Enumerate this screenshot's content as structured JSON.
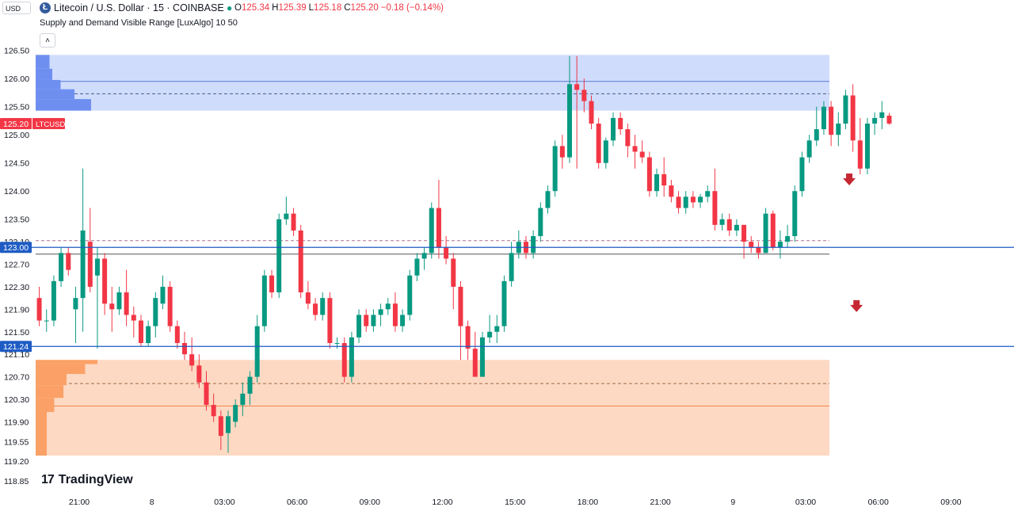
{
  "header": {
    "currency_selector": "USD",
    "logo_glyph": "Ł",
    "title": "Litecoin / U.S. Dollar · 15 · COINBASE",
    "status_dot": "●",
    "ohlc": [
      {
        "label": "O",
        "value": "125.34"
      },
      {
        "label": "H",
        "value": "125.39"
      },
      {
        "label": "L",
        "value": "125.18"
      },
      {
        "label": "C",
        "value": "125.20"
      },
      {
        "label": "",
        "value": "−0.18 (−0.14%)"
      }
    ],
    "indicator": "Supply and Demand Visible Range [LuxAlgo] 10 50",
    "collapse_glyph": "˄"
  },
  "branding": {
    "mark": "17",
    "name": "TradingView"
  },
  "colors": {
    "up": "#089981",
    "down": "#f23645",
    "supply_zone": "#c7d6fb",
    "supply_line": "#5b7ad6",
    "supply_profile": "#6f8ff0",
    "demand_zone": "#fdd5bd",
    "demand_line": "#f0844d",
    "demand_profile": "#fba167",
    "horizontal_line": "#1e5cc4",
    "arrow": "#c62833"
  },
  "chart_data": {
    "type": "candlestick",
    "symbol": "LTCUSD",
    "ylim": [
      118.85,
      126.65
    ],
    "y_ticks": [
      "126.50",
      "126.00",
      "125.50",
      "125.00",
      "124.50",
      "124.00",
      "123.50",
      "123.10",
      "122.70",
      "122.30",
      "121.90",
      "121.50",
      "121.10",
      "120.70",
      "120.30",
      "119.90",
      "119.55",
      "119.20",
      "118.85"
    ],
    "x_ticks": [
      {
        "label": "21:00",
        "bar": 6
      },
      {
        "label": "8",
        "bar": 16
      },
      {
        "label": "03:00",
        "bar": 26
      },
      {
        "label": "06:00",
        "bar": 36
      },
      {
        "label": "09:00",
        "bar": 46
      },
      {
        "label": "12:00",
        "bar": 56
      },
      {
        "label": "15:00",
        "bar": 66
      },
      {
        "label": "18:00",
        "bar": 76
      },
      {
        "label": "21:00",
        "bar": 86
      },
      {
        "label": "9",
        "bar": 96
      },
      {
        "label": "03:00",
        "bar": 106
      },
      {
        "label": "06:00",
        "bar": 116
      },
      {
        "label": "09:00",
        "bar": 126
      }
    ],
    "price_labels": [
      {
        "text": "125.20",
        "tag": "LTCUSD",
        "value": 125.2,
        "color": "#f23645"
      },
      {
        "text": "123.00",
        "value": 123.0,
        "color": "#1e5cc4"
      },
      {
        "text": "121.24",
        "value": 121.24,
        "color": "#1e5cc4"
      }
    ],
    "horizontal_lines": [
      123.0,
      121.24
    ],
    "supply_zone": {
      "top": 126.42,
      "bottom": 125.43,
      "avg_line": 125.95,
      "dashed_line": 125.73
    },
    "demand_zone": {
      "top": 121.0,
      "bottom": 119.3,
      "avg_line": 120.18,
      "dashed_line": 120.58
    },
    "extra_lines": {
      "dashed": 123.12,
      "solid": 122.88
    },
    "supply_profile": [
      {
        "level": 126.3,
        "strength": 0.25
      },
      {
        "level": 126.05,
        "strength": 0.3
      },
      {
        "level": 125.9,
        "strength": 0.45
      },
      {
        "level": 125.72,
        "strength": 0.7
      },
      {
        "level": 125.55,
        "strength": 1.0
      }
    ],
    "demand_profile": [
      {
        "level": 121.0,
        "strength": 1.0
      },
      {
        "level": 120.85,
        "strength": 0.8
      },
      {
        "level": 120.65,
        "strength": 0.5
      },
      {
        "level": 120.45,
        "strength": 0.45
      },
      {
        "level": 120.2,
        "strength": 0.3
      },
      {
        "level": 119.95,
        "strength": 0.18
      }
    ],
    "signals": [
      {
        "type": "down-arrow",
        "bar": 112,
        "price": 124.2
      },
      {
        "type": "down-arrow",
        "bar": 113,
        "price": 121.95
      }
    ],
    "candles": [
      {
        "o": 122.1,
        "h": 122.3,
        "l": 121.6,
        "c": 121.7
      },
      {
        "o": 121.7,
        "h": 121.9,
        "l": 121.5,
        "c": 121.7
      },
      {
        "o": 121.7,
        "h": 122.5,
        "l": 121.6,
        "c": 122.4
      },
      {
        "o": 122.4,
        "h": 123.0,
        "l": 122.3,
        "c": 122.9
      },
      {
        "o": 122.9,
        "h": 123.0,
        "l": 122.5,
        "c": 122.6
      },
      {
        "o": 121.9,
        "h": 122.3,
        "l": 121.3,
        "c": 122.1
      },
      {
        "o": 122.1,
        "h": 124.4,
        "l": 121.5,
        "c": 123.3
      },
      {
        "o": 123.1,
        "h": 123.7,
        "l": 122.2,
        "c": 122.3
      },
      {
        "o": 122.5,
        "h": 123.0,
        "l": 121.2,
        "c": 122.8
      },
      {
        "o": 122.8,
        "h": 122.9,
        "l": 121.8,
        "c": 122.0
      },
      {
        "o": 122.0,
        "h": 122.3,
        "l": 121.5,
        "c": 121.9
      },
      {
        "o": 121.9,
        "h": 122.3,
        "l": 121.8,
        "c": 122.2
      },
      {
        "o": 122.2,
        "h": 122.6,
        "l": 121.6,
        "c": 121.8
      },
      {
        "o": 121.8,
        "h": 121.95,
        "l": 121.4,
        "c": 121.7
      },
      {
        "o": 121.7,
        "h": 121.8,
        "l": 121.25,
        "c": 121.3
      },
      {
        "o": 121.3,
        "h": 121.7,
        "l": 121.25,
        "c": 121.6
      },
      {
        "o": 121.6,
        "h": 122.2,
        "l": 121.4,
        "c": 122.1
      },
      {
        "o": 122.0,
        "h": 122.5,
        "l": 121.9,
        "c": 122.3
      },
      {
        "o": 122.3,
        "h": 122.4,
        "l": 121.5,
        "c": 121.6
      },
      {
        "o": 121.6,
        "h": 121.7,
        "l": 121.2,
        "c": 121.3
      },
      {
        "o": 121.3,
        "h": 121.5,
        "l": 121.0,
        "c": 121.1
      },
      {
        "o": 121.1,
        "h": 121.4,
        "l": 120.8,
        "c": 120.9
      },
      {
        "o": 120.9,
        "h": 121.1,
        "l": 120.5,
        "c": 120.6
      },
      {
        "o": 120.6,
        "h": 120.8,
        "l": 120.1,
        "c": 120.2
      },
      {
        "o": 120.2,
        "h": 120.4,
        "l": 119.9,
        "c": 120.0
      },
      {
        "o": 120.0,
        "h": 120.1,
        "l": 119.4,
        "c": 119.65
      },
      {
        "o": 119.7,
        "h": 120.1,
        "l": 119.35,
        "c": 120.0
      },
      {
        "o": 119.9,
        "h": 120.3,
        "l": 119.8,
        "c": 120.2
      },
      {
        "o": 120.2,
        "h": 120.6,
        "l": 120.0,
        "c": 120.4
      },
      {
        "o": 120.4,
        "h": 120.8,
        "l": 120.2,
        "c": 120.7
      },
      {
        "o": 120.7,
        "h": 121.8,
        "l": 120.6,
        "c": 121.6
      },
      {
        "o": 121.6,
        "h": 122.6,
        "l": 121.5,
        "c": 122.5
      },
      {
        "o": 122.5,
        "h": 122.6,
        "l": 122.1,
        "c": 122.2
      },
      {
        "o": 122.2,
        "h": 123.6,
        "l": 122.1,
        "c": 123.5
      },
      {
        "o": 123.5,
        "h": 123.9,
        "l": 123.4,
        "c": 123.6
      },
      {
        "o": 123.6,
        "h": 123.7,
        "l": 123.2,
        "c": 123.3
      },
      {
        "o": 123.3,
        "h": 123.4,
        "l": 122.1,
        "c": 122.2
      },
      {
        "o": 122.2,
        "h": 122.4,
        "l": 121.9,
        "c": 122.0
      },
      {
        "o": 122.0,
        "h": 122.1,
        "l": 121.7,
        "c": 121.8
      },
      {
        "o": 121.8,
        "h": 122.2,
        "l": 121.7,
        "c": 122.1
      },
      {
        "o": 122.1,
        "h": 122.2,
        "l": 121.2,
        "c": 121.3
      },
      {
        "o": 121.3,
        "h": 121.4,
        "l": 121.2,
        "c": 121.3
      },
      {
        "o": 121.3,
        "h": 121.4,
        "l": 120.6,
        "c": 120.7
      },
      {
        "o": 120.7,
        "h": 121.5,
        "l": 120.6,
        "c": 121.4
      },
      {
        "o": 121.4,
        "h": 121.9,
        "l": 121.3,
        "c": 121.8
      },
      {
        "o": 121.8,
        "h": 121.9,
        "l": 121.5,
        "c": 121.6
      },
      {
        "o": 121.6,
        "h": 121.9,
        "l": 121.5,
        "c": 121.8
      },
      {
        "o": 121.8,
        "h": 122.0,
        "l": 121.6,
        "c": 121.9
      },
      {
        "o": 121.9,
        "h": 122.1,
        "l": 121.8,
        "c": 122.0
      },
      {
        "o": 122.0,
        "h": 122.2,
        "l": 121.5,
        "c": 121.6
      },
      {
        "o": 121.6,
        "h": 121.9,
        "l": 121.5,
        "c": 121.8
      },
      {
        "o": 121.8,
        "h": 122.6,
        "l": 121.7,
        "c": 122.5
      },
      {
        "o": 122.5,
        "h": 122.9,
        "l": 122.4,
        "c": 122.8
      },
      {
        "o": 122.8,
        "h": 123.0,
        "l": 122.6,
        "c": 122.9
      },
      {
        "o": 122.9,
        "h": 123.8,
        "l": 122.8,
        "c": 123.7
      },
      {
        "o": 123.7,
        "h": 124.2,
        "l": 122.8,
        "c": 123.0
      },
      {
        "o": 123.0,
        "h": 123.2,
        "l": 122.7,
        "c": 122.8
      },
      {
        "o": 122.8,
        "h": 122.9,
        "l": 121.9,
        "c": 122.3
      },
      {
        "o": 122.3,
        "h": 122.4,
        "l": 121.0,
        "c": 121.6
      },
      {
        "o": 121.6,
        "h": 121.7,
        "l": 121.0,
        "c": 121.2
      },
      {
        "o": 121.2,
        "h": 121.5,
        "l": 120.7,
        "c": 120.7
      },
      {
        "o": 120.7,
        "h": 121.5,
        "l": 120.7,
        "c": 121.4
      },
      {
        "o": 121.4,
        "h": 121.8,
        "l": 121.3,
        "c": 121.5
      },
      {
        "o": 121.5,
        "h": 121.8,
        "l": 121.3,
        "c": 121.6
      },
      {
        "o": 121.6,
        "h": 122.5,
        "l": 121.5,
        "c": 122.4
      },
      {
        "o": 122.4,
        "h": 123.1,
        "l": 122.3,
        "c": 122.9
      },
      {
        "o": 122.9,
        "h": 123.3,
        "l": 122.8,
        "c": 123.1
      },
      {
        "o": 123.1,
        "h": 123.2,
        "l": 122.8,
        "c": 122.9
      },
      {
        "o": 122.9,
        "h": 123.3,
        "l": 122.8,
        "c": 123.2
      },
      {
        "o": 123.2,
        "h": 123.8,
        "l": 123.1,
        "c": 123.7
      },
      {
        "o": 123.7,
        "h": 124.1,
        "l": 123.6,
        "c": 124.0
      },
      {
        "o": 124.0,
        "h": 124.9,
        "l": 123.9,
        "c": 124.8
      },
      {
        "o": 124.8,
        "h": 125.0,
        "l": 124.4,
        "c": 124.6
      },
      {
        "o": 124.6,
        "h": 126.4,
        "l": 124.5,
        "c": 125.9
      },
      {
        "o": 125.9,
        "h": 126.4,
        "l": 124.4,
        "c": 125.8
      },
      {
        "o": 125.8,
        "h": 126.0,
        "l": 125.4,
        "c": 125.6
      },
      {
        "o": 125.6,
        "h": 125.7,
        "l": 125.1,
        "c": 125.2
      },
      {
        "o": 125.2,
        "h": 125.3,
        "l": 124.4,
        "c": 124.5
      },
      {
        "o": 124.5,
        "h": 124.95,
        "l": 124.4,
        "c": 124.9
      },
      {
        "o": 124.9,
        "h": 125.4,
        "l": 124.8,
        "c": 125.3
      },
      {
        "o": 125.3,
        "h": 125.4,
        "l": 125.0,
        "c": 125.1
      },
      {
        "o": 125.1,
        "h": 125.2,
        "l": 124.6,
        "c": 124.8
      },
      {
        "o": 124.8,
        "h": 125.0,
        "l": 124.4,
        "c": 124.7
      },
      {
        "o": 124.7,
        "h": 124.9,
        "l": 124.5,
        "c": 124.6
      },
      {
        "o": 124.6,
        "h": 124.7,
        "l": 123.9,
        "c": 124.0
      },
      {
        "o": 124.0,
        "h": 124.4,
        "l": 123.9,
        "c": 124.3
      },
      {
        "o": 124.3,
        "h": 124.6,
        "l": 123.9,
        "c": 124.1
      },
      {
        "o": 124.1,
        "h": 124.2,
        "l": 123.8,
        "c": 123.9
      },
      {
        "o": 123.9,
        "h": 124.0,
        "l": 123.6,
        "c": 123.7
      },
      {
        "o": 123.7,
        "h": 124.0,
        "l": 123.6,
        "c": 123.9
      },
      {
        "o": 123.9,
        "h": 124.0,
        "l": 123.7,
        "c": 123.8
      },
      {
        "o": 123.8,
        "h": 123.95,
        "l": 123.7,
        "c": 123.9
      },
      {
        "o": 123.9,
        "h": 124.1,
        "l": 123.8,
        "c": 124.0
      },
      {
        "o": 124.0,
        "h": 124.4,
        "l": 123.3,
        "c": 123.4
      },
      {
        "o": 123.4,
        "h": 123.6,
        "l": 123.3,
        "c": 123.5
      },
      {
        "o": 123.5,
        "h": 123.6,
        "l": 123.2,
        "c": 123.3
      },
      {
        "o": 123.3,
        "h": 123.5,
        "l": 123.2,
        "c": 123.4
      },
      {
        "o": 123.4,
        "h": 123.4,
        "l": 122.8,
        "c": 123.1
      },
      {
        "o": 123.1,
        "h": 123.2,
        "l": 122.9,
        "c": 123.0
      },
      {
        "o": 123.0,
        "h": 123.1,
        "l": 122.8,
        "c": 122.9
      },
      {
        "o": 122.9,
        "h": 123.7,
        "l": 122.9,
        "c": 123.6
      },
      {
        "o": 123.6,
        "h": 123.65,
        "l": 122.95,
        "c": 123.0
      },
      {
        "o": 123.0,
        "h": 123.3,
        "l": 122.8,
        "c": 123.1
      },
      {
        "o": 123.1,
        "h": 123.4,
        "l": 123.0,
        "c": 123.2
      },
      {
        "o": 123.2,
        "h": 124.1,
        "l": 123.1,
        "c": 124.0
      },
      {
        "o": 124.0,
        "h": 124.7,
        "l": 123.9,
        "c": 124.6
      },
      {
        "o": 124.6,
        "h": 125.0,
        "l": 124.5,
        "c": 124.9
      },
      {
        "o": 124.9,
        "h": 125.5,
        "l": 124.8,
        "c": 125.1
      },
      {
        "o": 125.1,
        "h": 125.6,
        "l": 125.0,
        "c": 125.5
      },
      {
        "o": 125.5,
        "h": 125.6,
        "l": 124.8,
        "c": 125.0
      },
      {
        "o": 125.0,
        "h": 125.4,
        "l": 124.8,
        "c": 125.2
      },
      {
        "o": 125.2,
        "h": 125.8,
        "l": 125.1,
        "c": 125.7
      },
      {
        "o": 125.7,
        "h": 125.9,
        "l": 124.7,
        "c": 124.9
      },
      {
        "o": 124.9,
        "h": 125.3,
        "l": 124.3,
        "c": 124.4
      },
      {
        "o": 124.4,
        "h": 125.3,
        "l": 124.3,
        "c": 125.2
      },
      {
        "o": 125.2,
        "h": 125.4,
        "l": 125.0,
        "c": 125.3
      },
      {
        "o": 125.3,
        "h": 125.6,
        "l": 125.1,
        "c": 125.4
      },
      {
        "o": 125.34,
        "h": 125.39,
        "l": 125.18,
        "c": 125.2
      }
    ]
  }
}
